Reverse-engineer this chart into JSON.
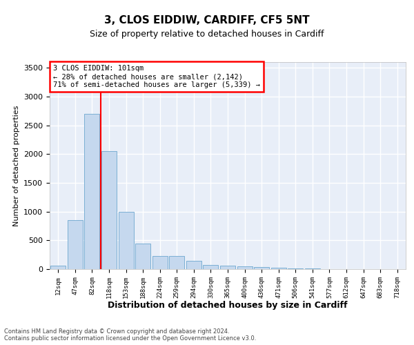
{
  "title": "3, CLOS EIDDIW, CARDIFF, CF5 5NT",
  "subtitle": "Size of property relative to detached houses in Cardiff",
  "xlabel": "Distribution of detached houses by size in Cardiff",
  "ylabel": "Number of detached properties",
  "bin_labels": [
    "12sqm",
    "47sqm",
    "82sqm",
    "118sqm",
    "153sqm",
    "188sqm",
    "224sqm",
    "259sqm",
    "294sqm",
    "330sqm",
    "365sqm",
    "400sqm",
    "436sqm",
    "471sqm",
    "506sqm",
    "541sqm",
    "577sqm",
    "612sqm",
    "647sqm",
    "683sqm",
    "718sqm"
  ],
  "bar_values": [
    60,
    850,
    2700,
    2050,
    1000,
    450,
    230,
    230,
    140,
    75,
    60,
    50,
    35,
    20,
    15,
    10,
    5,
    3,
    2,
    2,
    2
  ],
  "bar_color": "#c5d8ee",
  "bar_edge_color": "#7bafd4",
  "vline_x": 2.5,
  "vline_color": "red",
  "annotation_text": "3 CLOS EIDDIW: 101sqm\n← 28% of detached houses are smaller (2,142)\n71% of semi-detached houses are larger (5,339) →",
  "annotation_box_color": "white",
  "annotation_box_edge_color": "red",
  "ylim": [
    0,
    3600
  ],
  "yticks": [
    0,
    500,
    1000,
    1500,
    2000,
    2500,
    3000,
    3500
  ],
  "background_color": "#e8eef8",
  "grid_color": "white",
  "footer_line1": "Contains HM Land Registry data © Crown copyright and database right 2024.",
  "footer_line2": "Contains public sector information licensed under the Open Government Licence v3.0."
}
